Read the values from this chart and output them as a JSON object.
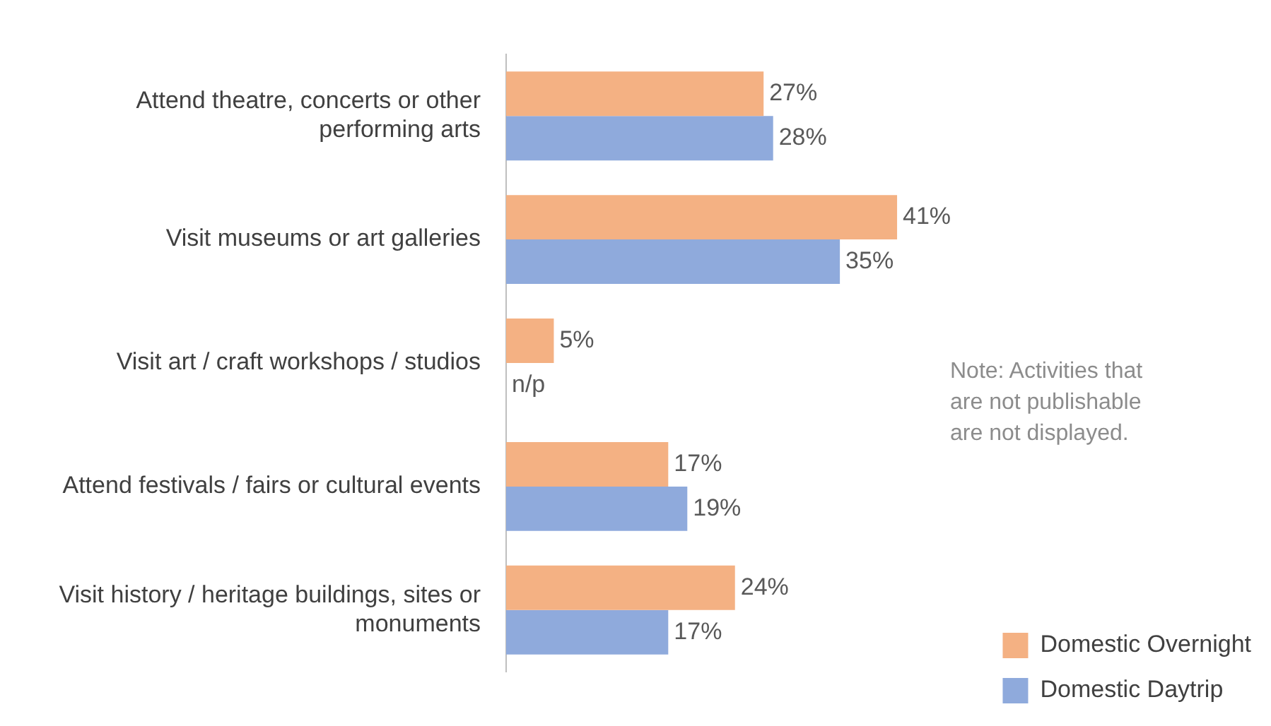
{
  "chart_data": {
    "type": "bar",
    "orientation": "horizontal",
    "categories": [
      "Attend theatre, concerts or other performing arts",
      "Visit museums or art galleries",
      "Visit art / craft workshops / studios",
      "Attend festivals / fairs or cultural events",
      "Visit history / heritage buildings, sites or monuments"
    ],
    "series": [
      {
        "name": "Domestic Overnight",
        "color": "#f4b183",
        "values": [
          27,
          41,
          5,
          17,
          24
        ],
        "value_labels": [
          "27%",
          "41%",
          "5%",
          "17%",
          "24%"
        ]
      },
      {
        "name": "Domestic Daytrip",
        "color": "#8faadc",
        "values": [
          28,
          35,
          null,
          19,
          17
        ],
        "value_labels": [
          "28%",
          "35%",
          "n/p",
          "19%",
          "17%"
        ]
      }
    ],
    "annotations": [
      "Note: Activities that are not publishable are not displayed."
    ],
    "legend": "right"
  }
}
